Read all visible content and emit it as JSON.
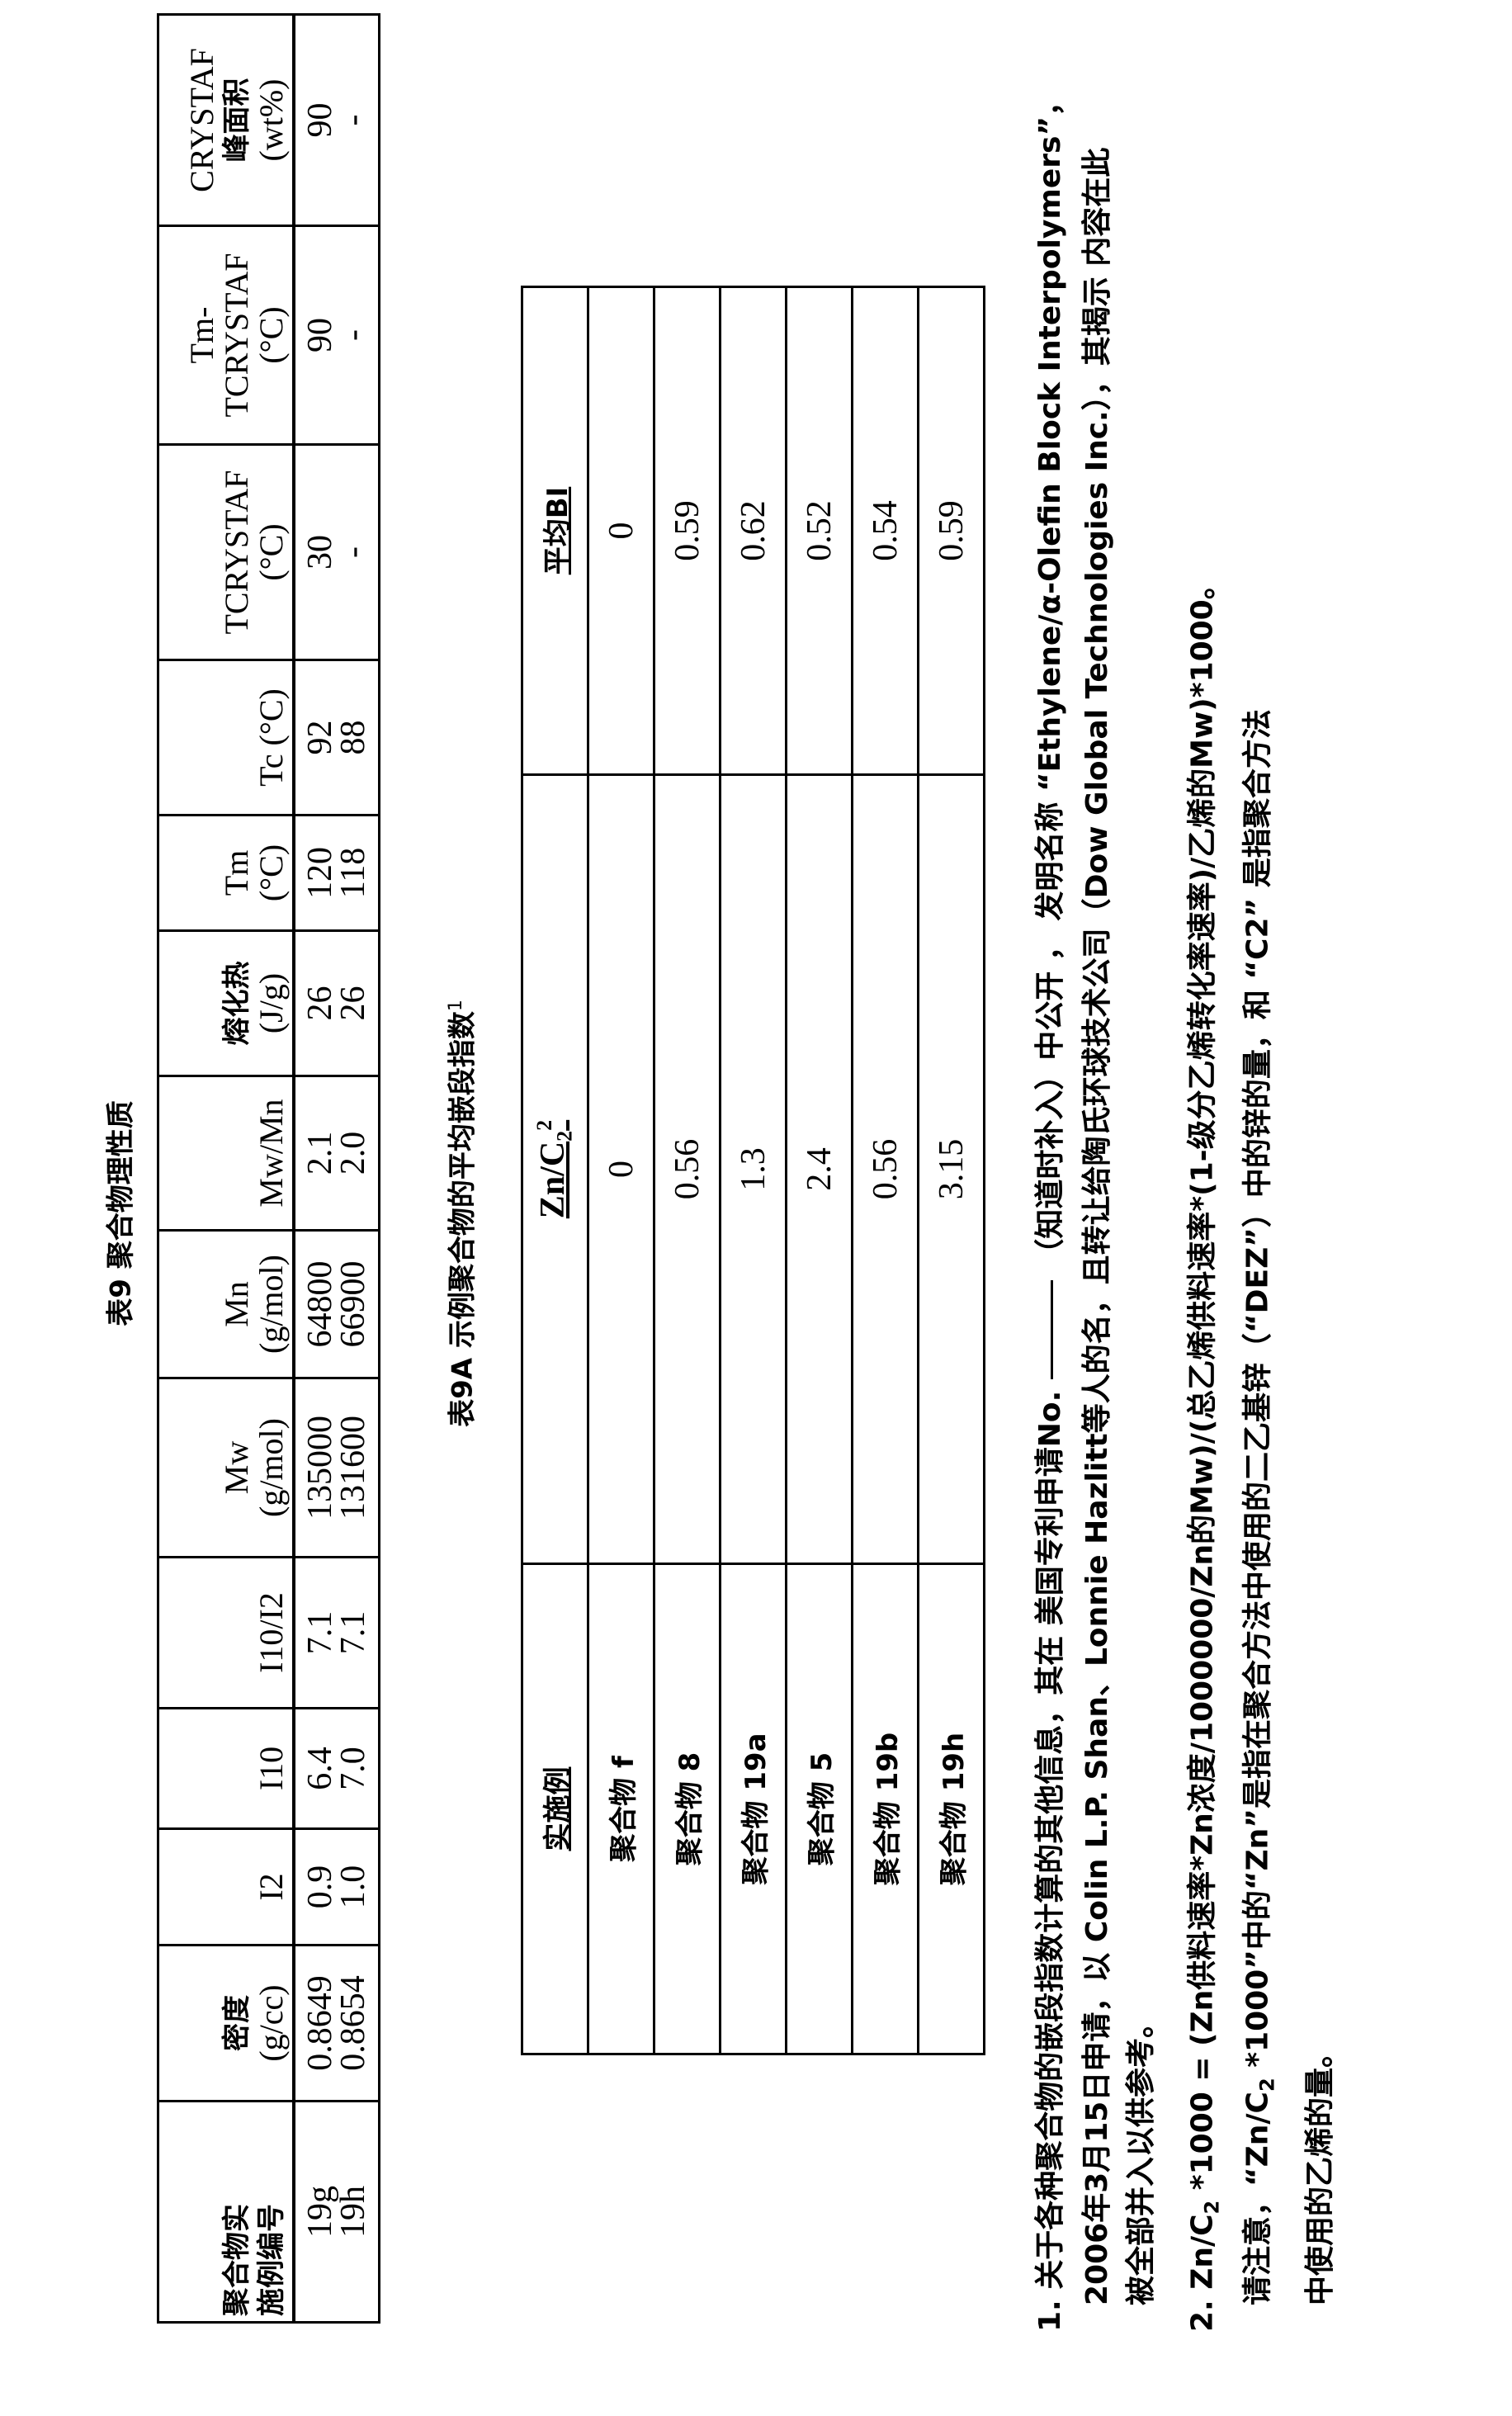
{
  "table9": {
    "title": "表9  聚合物理性质",
    "headers": [
      {
        "l1": "聚合物实",
        "l2": "施例编号",
        "cjk": true
      },
      {
        "l1": "密度",
        "l2": "(g/cc)",
        "cjk1": true
      },
      {
        "l1": "",
        "l2": "I2"
      },
      {
        "l1": "",
        "l2": "I10"
      },
      {
        "l1": "",
        "l2": "I10/I2"
      },
      {
        "l1": "Mw",
        "l2": "(g/mol)"
      },
      {
        "l1": "Mn",
        "l2": "(g/mol)"
      },
      {
        "l1": "",
        "l2": "Mw/Mn"
      },
      {
        "l1": "熔化热",
        "l2": "(J/g)",
        "cjk1": true
      },
      {
        "l1": "Tm",
        "l2": "(°C)"
      },
      {
        "l1": "",
        "l2": "Tc (°C)"
      },
      {
        "l1": "TCRYSTAF",
        "l2": "(°C)"
      },
      {
        "l1": "Tm-",
        "l2": "TCRYSTAF",
        "l3": "(°C)"
      },
      {
        "l1": "CRYSTAF",
        "l2": "峰面积",
        "l3": "(wt%)"
      }
    ],
    "rows": [
      [
        "19g",
        "0.8649",
        "0.9",
        "6.4",
        "7.1",
        "135000",
        "64800",
        "2.1",
        "26",
        "120",
        "92",
        "30",
        "90",
        "90"
      ],
      [
        "19h",
        "0.8654",
        "1.0",
        "7.0",
        "7.1",
        "131600",
        "66900",
        "2.0",
        "26",
        "118",
        "88",
        "-",
        "-",
        "-"
      ]
    ]
  },
  "table9a": {
    "title": "表9A  示例聚合物的平均嵌段指数",
    "title_sup": "1",
    "header_example": "实施例",
    "header_zn": "Zn/C",
    "header_zn_sub": "2",
    "header_zn_sup": "2",
    "header_bi": "平均BI",
    "rows": [
      {
        "example": "聚合物 f",
        "zn": "0",
        "bi": "0"
      },
      {
        "example": "聚合物 8",
        "zn": "0.56",
        "bi": "0.59"
      },
      {
        "example": "聚合物 19a",
        "zn": "1.3",
        "bi": "0.62"
      },
      {
        "example": "聚合物 5",
        "zn": "2.4",
        "bi": "0.52"
      },
      {
        "example": "聚合物 19b",
        "zn": "0.56",
        "bi": "0.54"
      },
      {
        "example": "聚合物 19h",
        "zn": "3.15",
        "bi": "0.59"
      }
    ]
  },
  "footnotes": {
    "fn1_line1_a": "1. 关于各种聚合物的嵌段指数计算的其他信息，其在 美国专利申请No.",
    "fn1_line1_b": "（知道时补入）中公开 ，  发明名称 “Ethylene/α-Olefin Block Interpolymers”，",
    "fn1_line2": "2006年3月15日申请，以 Colin L.P. Shan、Lonnie Hazlitt等人的名，且转让给陶氏环球技术公司（Dow Global Technologies Inc.），其揭示 内容在此",
    "fn1_line3": "被全部并入以供参考。",
    "fn2_line1_a": "2. Zn/C",
    "fn2_line1_sub": "2",
    "fn2_line1_b": " *1000 = (Zn供料速率*Zn浓度/1000000/Zn的Mw)/(总乙烯供料速率*(1-级分乙烯转化率速率)/乙烯的Mw)*1000。",
    "fn2_line2_a": "请注意，“Zn/C",
    "fn2_line2_sub": "2",
    "fn2_line2_b": " *1000”中的“Zn”是指在聚合方法中使用的二乙基锌（“DEZ”）中的锌的量，和 “C2” 是指聚合方法",
    "fn2_line3": "中使用的乙烯的量。"
  }
}
